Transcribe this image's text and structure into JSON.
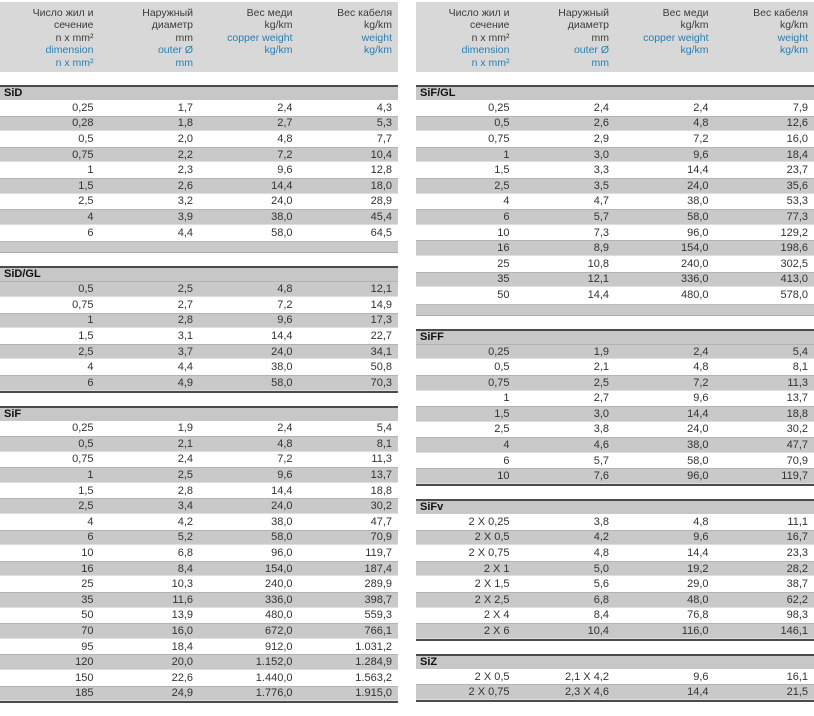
{
  "colors": {
    "blue_text": "#2b7fad",
    "stripe_gray": "#c9c9c9",
    "header_block_gray": "#d8d8d8",
    "rule_dark": "#4b4b4b"
  },
  "header_columns": [
    {
      "ru": [
        "Число жил и",
        "сечение",
        "n x mm²"
      ],
      "en": [
        "dimension",
        "n x mm²"
      ]
    },
    {
      "ru": [
        "Наружный",
        "диаметр",
        "mm"
      ],
      "en": [
        "outer Ø",
        "mm"
      ]
    },
    {
      "ru": [
        "Вес меди",
        "kg/km"
      ],
      "en": [
        "copper weight",
        "kg/km"
      ]
    },
    {
      "ru": [
        "Вес кабеля",
        "kg/km"
      ],
      "en": [
        "weight",
        "kg/km"
      ]
    }
  ],
  "panels": [
    {
      "side": "left",
      "tables": [
        {
          "name": "SiD",
          "first_row_shade": "light",
          "trailing_band": true,
          "rows": [
            [
              "0,25",
              "1,7",
              "2,4",
              "4,3"
            ],
            [
              "0,28",
              "1,8",
              "2,7",
              "5,3"
            ],
            [
              "0,5",
              "2,0",
              "4,8",
              "7,7"
            ],
            [
              "0,75",
              "2,2",
              "7,2",
              "10,4"
            ],
            [
              "1",
              "2,3",
              "9,6",
              "12,8"
            ],
            [
              "1,5",
              "2,6",
              "14,4",
              "18,0"
            ],
            [
              "2,5",
              "3,2",
              "24,0",
              "28,9"
            ],
            [
              "4",
              "3,9",
              "38,0",
              "45,4"
            ],
            [
              "6",
              "4,4",
              "58,0",
              "64,5"
            ]
          ]
        },
        {
          "name": "SiD/GL",
          "first_row_shade": "dark",
          "trailing_band": false,
          "rows": [
            [
              "0,5",
              "2,5",
              "4,8",
              "12,1"
            ],
            [
              "0,75",
              "2,7",
              "7,2",
              "14,9"
            ],
            [
              "1",
              "2,8",
              "9,6",
              "17,3"
            ],
            [
              "1,5",
              "3,1",
              "14,4",
              "22,7"
            ],
            [
              "2,5",
              "3,7",
              "24,0",
              "34,1"
            ],
            [
              "4",
              "4,4",
              "38,0",
              "50,8"
            ],
            [
              "6",
              "4,9",
              "58,0",
              "70,3"
            ]
          ]
        },
        {
          "name": "SiF",
          "first_row_shade": "light",
          "trailing_band": false,
          "rows": [
            [
              "0,25",
              "1,9",
              "2,4",
              "5,4"
            ],
            [
              "0,5",
              "2,1",
              "4,8",
              "8,1"
            ],
            [
              "0,75",
              "2,4",
              "7,2",
              "11,3"
            ],
            [
              "1",
              "2,5",
              "9,6",
              "13,7"
            ],
            [
              "1,5",
              "2,8",
              "14,4",
              "18,8"
            ],
            [
              "2,5",
              "3,4",
              "24,0",
              "30,2"
            ],
            [
              "4",
              "4,2",
              "38,0",
              "47,7"
            ],
            [
              "6",
              "5,2",
              "58,0",
              "70,9"
            ],
            [
              "10",
              "6,8",
              "96,0",
              "119,7"
            ],
            [
              "16",
              "8,4",
              "154,0",
              "187,4"
            ],
            [
              "25",
              "10,3",
              "240,0",
              "289,9"
            ],
            [
              "35",
              "11,6",
              "336,0",
              "398,7"
            ],
            [
              "50",
              "13,9",
              "480,0",
              "559,3"
            ],
            [
              "70",
              "16,0",
              "672,0",
              "766,1"
            ],
            [
              "95",
              "18,4",
              "912,0",
              "1.031,2"
            ],
            [
              "120",
              "20,0",
              "1.152,0",
              "1.284,9"
            ],
            [
              "150",
              "22,6",
              "1.440,0",
              "1.563,2"
            ],
            [
              "185",
              "24,9",
              "1.776,0",
              "1.915,0"
            ]
          ]
        }
      ]
    },
    {
      "side": "right",
      "tables": [
        {
          "name": "SiF/GL",
          "first_row_shade": "light",
          "trailing_band": true,
          "rows": [
            [
              "0,25",
              "2,4",
              "2,4",
              "7,9"
            ],
            [
              "0,5",
              "2,6",
              "4,8",
              "12,6"
            ],
            [
              "0,75",
              "2,9",
              "7,2",
              "16,0"
            ],
            [
              "1",
              "3,0",
              "9,6",
              "18,4"
            ],
            [
              "1,5",
              "3,3",
              "14,4",
              "23,7"
            ],
            [
              "2,5",
              "3,5",
              "24,0",
              "35,6"
            ],
            [
              "4",
              "4,7",
              "38,0",
              "53,3"
            ],
            [
              "6",
              "5,7",
              "58,0",
              "77,3"
            ],
            [
              "10",
              "7,3",
              "96,0",
              "129,2"
            ],
            [
              "16",
              "8,9",
              "154,0",
              "198,6"
            ],
            [
              "25",
              "10,8",
              "240,0",
              "302,5"
            ],
            [
              "35",
              "12,1",
              "336,0",
              "413,0"
            ],
            [
              "50",
              "14,4",
              "480,0",
              "578,0"
            ]
          ]
        },
        {
          "name": "SiFF",
          "first_row_shade": "dark",
          "trailing_band": false,
          "rows": [
            [
              "0,25",
              "1,9",
              "2,4",
              "5,4"
            ],
            [
              "0,5",
              "2,1",
              "4,8",
              "8,1"
            ],
            [
              "0,75",
              "2,5",
              "7,2",
              "11,3"
            ],
            [
              "1",
              "2,7",
              "9,6",
              "13,7"
            ],
            [
              "1,5",
              "3,0",
              "14,4",
              "18,8"
            ],
            [
              "2,5",
              "3,8",
              "24,0",
              "30,2"
            ],
            [
              "4",
              "4,6",
              "38,0",
              "47,7"
            ],
            [
              "6",
              "5,7",
              "58,0",
              "70,9"
            ],
            [
              "10",
              "7,6",
              "96,0",
              "119,7"
            ]
          ]
        },
        {
          "name": "SiFv",
          "first_row_shade": "light",
          "trailing_band": false,
          "rows": [
            [
              "2 X 0,25",
              "3,8",
              "4,8",
              "11,1"
            ],
            [
              "2 X 0,5",
              "4,2",
              "9,6",
              "16,7"
            ],
            [
              "2 X 0,75",
              "4,8",
              "14,4",
              "23,3"
            ],
            [
              "2 X 1",
              "5,0",
              "19,2",
              "28,2"
            ],
            [
              "2 X 1,5",
              "5,6",
              "29,0",
              "38,7"
            ],
            [
              "2 X 2,5",
              "6,8",
              "48,0",
              "62,2"
            ],
            [
              "2 X 4",
              "8,4",
              "76,8",
              "98,3"
            ],
            [
              "2 X 6",
              "10,4",
              "116,0",
              "146,1"
            ]
          ]
        },
        {
          "name": "SiZ",
          "first_row_shade": "light",
          "trailing_band": false,
          "rows": [
            [
              "2 X 0,5",
              "2,1 X 4,2",
              "9,6",
              "16,1"
            ],
            [
              "2 X 0,75",
              "2,3 X 4,6",
              "14,4",
              "21,5"
            ]
          ]
        }
      ]
    }
  ]
}
